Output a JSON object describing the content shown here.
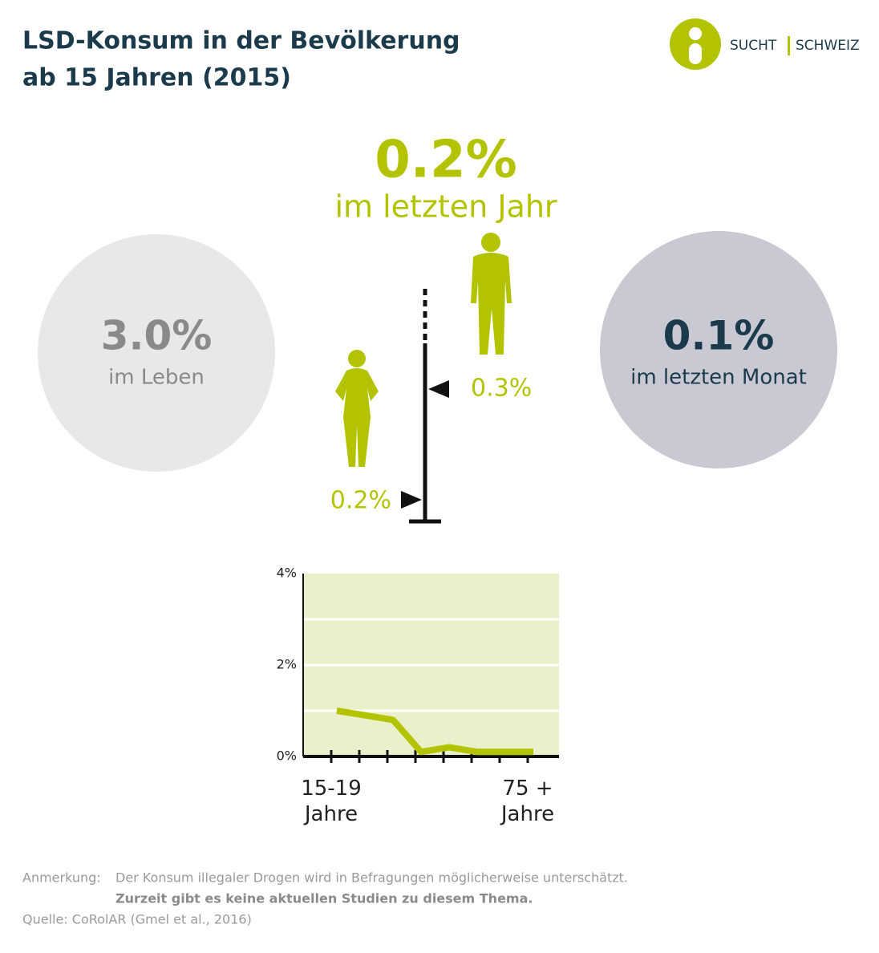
{
  "header": {
    "title_line1": "LSD-Konsum in der Bevölkerung",
    "title_line2": "ab 15 Jahren (2015)"
  },
  "logo": {
    "left": "SUCHT",
    "right": "SCHWEIZ"
  },
  "year": {
    "value": "0.2%",
    "label": "im letzten Jahr"
  },
  "lifetime": {
    "value": "3.0%",
    "label": "im Leben"
  },
  "month": {
    "value": "0.1%",
    "label": "im letzten Monat"
  },
  "gender": {
    "men": "0.3%",
    "women": "0.2%"
  },
  "chart_data": {
    "type": "line",
    "color": "#b3c300",
    "background": "#eaf0c9",
    "categories": [
      "15-19\nJahre",
      null,
      null,
      null,
      null,
      null,
      null,
      "75 +\nJahre"
    ],
    "values": [
      1.0,
      0.9,
      0.8,
      0.1,
      0.2,
      0.1,
      0.1,
      0.1
    ],
    "ylim": [
      0,
      4
    ],
    "yticks": [
      {
        "value": 0,
        "label": "0%"
      },
      {
        "value": 2,
        "label": "2%"
      },
      {
        "value": 4,
        "label": "4%"
      }
    ],
    "gridlines": [
      1,
      2,
      3
    ]
  },
  "footer": {
    "note_label": "Anmerkung:",
    "note": "Der Konsum illegaler Drogen wird in Befragungen möglicherweise unterschätzt.",
    "note_bold": "Zurzeit gibt es keine aktuellen Studien zu diesem Thema.",
    "source": "Quelle: CoRolAR (Gmel et al., 2016)"
  }
}
